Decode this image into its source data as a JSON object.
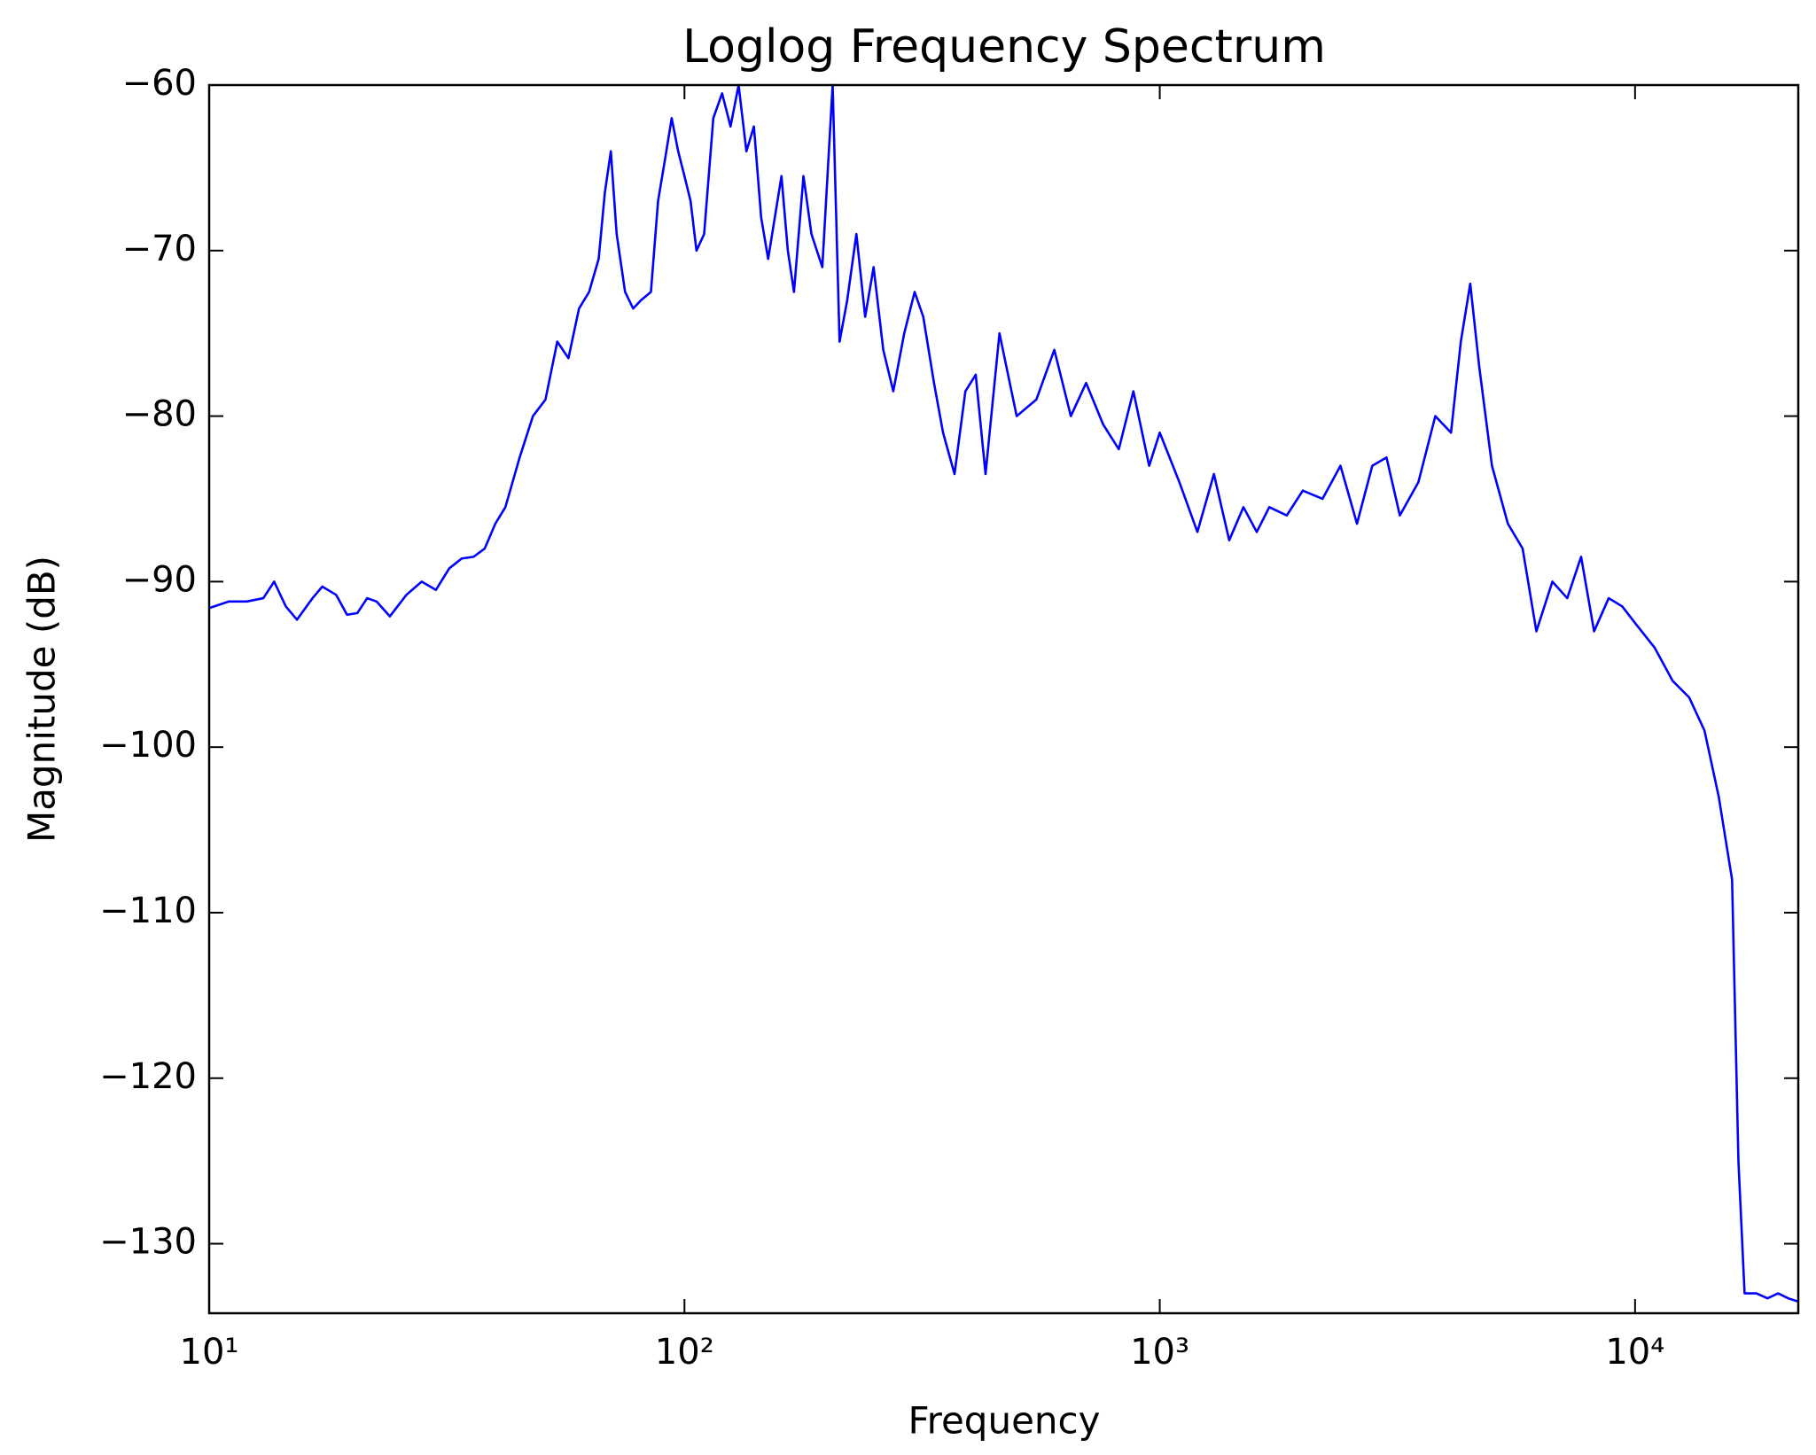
{
  "chart_data": {
    "type": "line",
    "title": "Loglog Frequency Spectrum",
    "x_label": "Frequency",
    "y_label": "Magnitude (dB)",
    "xscale": "log",
    "color": "#0000ff",
    "xlim": [
      10,
      22050
    ],
    "ylim": [
      -134.2,
      -60
    ],
    "xticks": [
      {
        "value": 10,
        "label": "10¹"
      },
      {
        "value": 100,
        "label": "10²"
      },
      {
        "value": 1000,
        "label": "10³"
      },
      {
        "value": 10000,
        "label": "10⁴"
      }
    ],
    "yticks": [
      {
        "value": -60,
        "label": "−60"
      },
      {
        "value": -70,
        "label": "−70"
      },
      {
        "value": -80,
        "label": "−80"
      },
      {
        "value": -90,
        "label": "−90"
      },
      {
        "value": -100,
        "label": "−100"
      },
      {
        "value": -110,
        "label": "−110"
      },
      {
        "value": -120,
        "label": "−120"
      },
      {
        "value": -130,
        "label": "−130"
      }
    ],
    "x": [
      10,
      11,
      12,
      13,
      13.7,
      14.5,
      15.3,
      16.5,
      17.3,
      18.5,
      19.5,
      20.5,
      21.5,
      22.5,
      24,
      26,
      28,
      30,
      32,
      34,
      36,
      38,
      40,
      42,
      45,
      48,
      51,
      54,
      57,
      60,
      63,
      66,
      68,
      70,
      72,
      75,
      78,
      81,
      85,
      88,
      91,
      94,
      97,
      100,
      103,
      106,
      110,
      115,
      120,
      125,
      130,
      135,
      140,
      145,
      150,
      160,
      165,
      170,
      178,
      185,
      195,
      205,
      212,
      220,
      230,
      240,
      250,
      262,
      275,
      290,
      305,
      318,
      335,
      350,
      370,
      390,
      410,
      430,
      460,
      500,
      550,
      600,
      650,
      700,
      760,
      820,
      880,
      950,
      1000,
      1100,
      1200,
      1300,
      1400,
      1500,
      1600,
      1700,
      1850,
      2000,
      2200,
      2400,
      2600,
      2800,
      3000,
      3200,
      3500,
      3800,
      4100,
      4300,
      4500,
      4700,
      5000,
      5400,
      5800,
      6200,
      6700,
      7200,
      7700,
      8200,
      8800,
      9400,
      10000,
      11000,
      12000,
      13000,
      14000,
      15000,
      16000,
      16500,
      17000,
      18000,
      19000,
      20000,
      21000,
      22050
    ],
    "values": [
      -91.6,
      -91.2,
      -91.2,
      -91.0,
      -90,
      -91.5,
      -92.3,
      -91,
      -90.3,
      -90.8,
      -92,
      -91.9,
      -91,
      -91.2,
      -92.1,
      -90.8,
      -90,
      -90.5,
      -89.2,
      -88.6,
      -88.5,
      -88,
      -86.5,
      -85.5,
      -82.5,
      -80,
      -79,
      -75.5,
      -76.5,
      -73.5,
      -72.5,
      -70.5,
      -66.5,
      -64,
      -69,
      -72.5,
      -73.5,
      -73,
      -72.5,
      -67,
      -64.5,
      -62,
      -64,
      -65.5,
      -67,
      -70,
      -69,
      -62,
      -60.5,
      -62.5,
      -60,
      -64,
      -62.5,
      -68,
      -70.5,
      -65.5,
      -70,
      -72.5,
      -65.5,
      -69,
      -71,
      -60,
      -75.5,
      -73,
      -69,
      -74,
      -71,
      -76,
      -78.5,
      -75,
      -72.5,
      -74,
      -78,
      -81,
      -83.5,
      -78.5,
      -77.5,
      -83.5,
      -75,
      -80,
      -79,
      -76,
      -80,
      -78,
      -80.5,
      -82,
      -78.5,
      -83,
      -81,
      -84,
      -87,
      -83.5,
      -87.5,
      -85.5,
      -87,
      -85.5,
      -86,
      -84.5,
      -85,
      -83,
      -86.5,
      -83,
      -82.5,
      -86,
      -84,
      -80,
      -81,
      -75.5,
      -72,
      -77,
      -83,
      -86.5,
      -88,
      -93,
      -90,
      -91,
      -88.5,
      -93,
      -91,
      -91.5,
      -92.5,
      -94,
      -96,
      -97,
      -99,
      -103,
      -108,
      -125,
      -133,
      -133,
      -133.3,
      -133,
      -133.3,
      -133.5
    ]
  }
}
